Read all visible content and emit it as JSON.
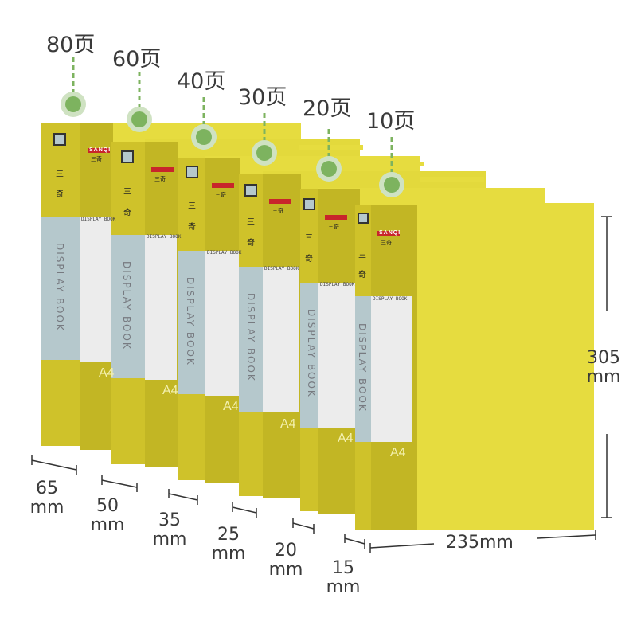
{
  "books": [
    {
      "pages": "80页",
      "spine": "65",
      "unit": "mm"
    },
    {
      "pages": "60页",
      "spine": "50",
      "unit": "mm"
    },
    {
      "pages": "40页",
      "spine": "35",
      "unit": "mm"
    },
    {
      "pages": "30页",
      "spine": "25",
      "unit": "mm"
    },
    {
      "pages": "20页",
      "spine": "20",
      "unit": "mm"
    },
    {
      "pages": "10页",
      "spine": "15",
      "unit": "mm"
    }
  ],
  "cover_width": "235mm",
  "height_value": "305",
  "height_unit": "mm",
  "spine_label": "DISPLAY BOOK",
  "size_label": "A4",
  "brand": "SANQI",
  "brand_cn": "三奇",
  "spine_chars": [
    "三",
    "奇"
  ],
  "colors": {
    "cover": "#e6dc3f",
    "spine": "#c9bd25",
    "spine_dark": "#b8ad1f",
    "label_blue": "#b5c8cc",
    "label_white": "#ececec",
    "dot": "#7db35f"
  }
}
